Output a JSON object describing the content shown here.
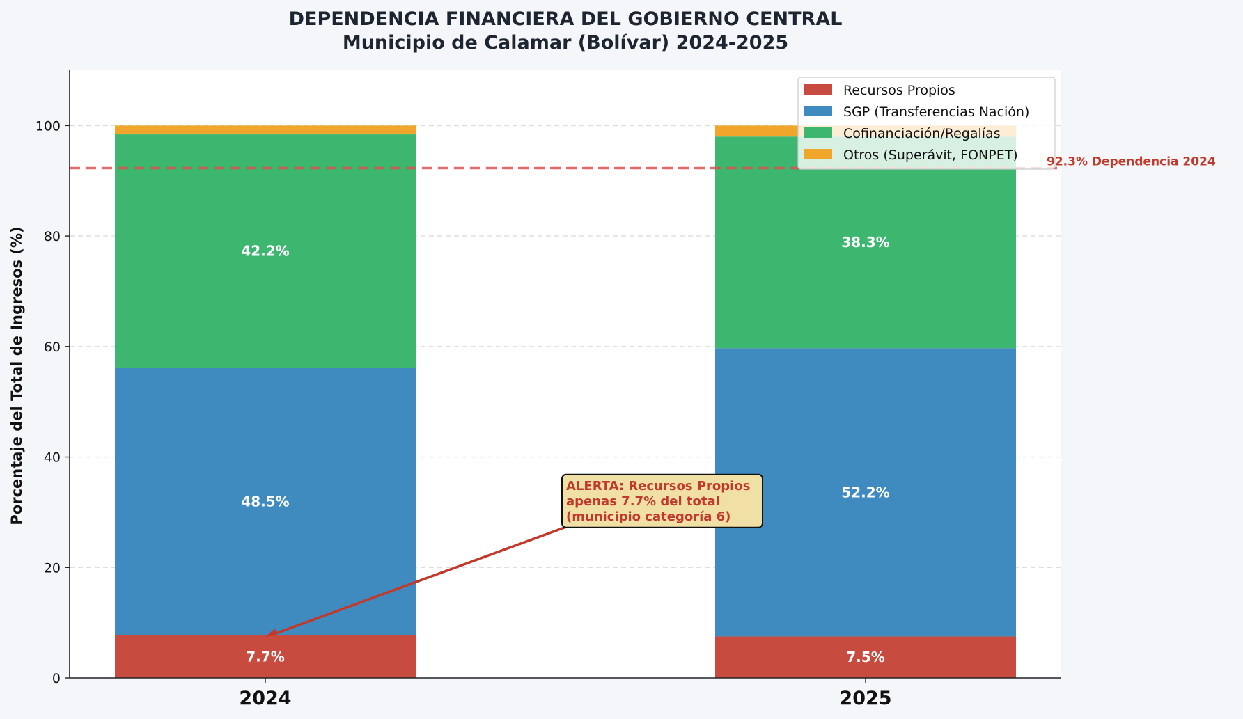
{
  "chart_data": {
    "type": "bar",
    "stacked": true,
    "title": "DEPENDENCIA FINANCIERA DEL GOBIERNO CENTRAL",
    "subtitle": "Municipio de Calamar (Bolívar) 2024-2025",
    "xlabel": "",
    "ylabel": "Porcentaje del Total de Ingresos (%)",
    "ylim": [
      0,
      110
    ],
    "yticks": [
      "0",
      "20",
      "40",
      "60",
      "80",
      "100"
    ],
    "grid": "horizontal-dashed",
    "legend_position": "top-right",
    "categories": [
      "2024",
      "2025"
    ],
    "series": [
      {
        "name": "Recursos Propios",
        "color": "#c84b3f",
        "values": [
          7.7,
          7.5
        ],
        "labels": [
          "7.7%",
          "7.5%"
        ]
      },
      {
        "name": "SGP (Transferencias Nación)",
        "color": "#3f8bbf",
        "values": [
          48.5,
          52.2
        ],
        "labels": [
          "48.5%",
          "52.2%"
        ]
      },
      {
        "name": "Cofinanciación/Regalías",
        "color": "#3db670",
        "values": [
          42.2,
          38.3
        ],
        "labels": [
          "42.2%",
          "38.3%"
        ]
      },
      {
        "name": "Otros (Superávit, FONPET)",
        "color": "#f0a52b",
        "values": [
          1.6,
          2.0
        ],
        "labels": [
          "",
          ""
        ]
      }
    ],
    "reference_line": {
      "value": 92.3,
      "label": "92.3% Dependencia 2024",
      "color": "#d9534f"
    },
    "annotation": {
      "lines": [
        "ALERTA: Recursos Propios",
        "apenas 7.7% del total",
        "(municipio categoría 6)"
      ],
      "target_category": "2024",
      "target_value": 7.7,
      "text_value": 28
    }
  }
}
